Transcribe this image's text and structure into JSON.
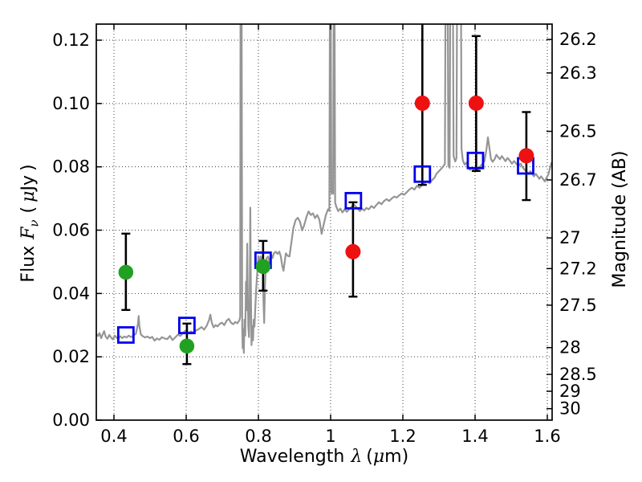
{
  "figure": {
    "background": "#ffffff",
    "frame_color": "#000000",
    "grid_color": "#3d3d3d",
    "errorbar_color": "#000000"
  },
  "labels": {
    "x": {
      "word": "Wavelength",
      "symbol": "λ",
      "open": "(",
      "mu": "μ",
      "unit": "m",
      "close": ")"
    },
    "y_left": {
      "word": "Flux",
      "symbol": "F",
      "subscript": "ν",
      "open": "(",
      "mu": "μ",
      "unit": "Jy",
      "close": ")"
    },
    "y_right": {
      "text": "Magnitude (AB)"
    }
  },
  "chart_data": {
    "type": "scatter",
    "title": "",
    "xlabel": "Wavelength λ (μm)",
    "ylabel": "Flux Fν ( μJy )",
    "ylabel_right": "Magnitude (AB)",
    "xlim": [
      0.351,
      1.614
    ],
    "ylim": [
      0.0,
      0.1251
    ],
    "grid": "dotted at major ticks, both axes",
    "x_ticks": [
      0.4,
      0.6,
      0.8,
      1.0,
      1.2,
      1.4,
      1.6
    ],
    "x_tick_labels": [
      "0.4",
      "0.6",
      "0.8",
      "1",
      "1.2",
      "1.4",
      "1.6"
    ],
    "y_ticks": [
      0.0,
      0.02,
      0.04,
      0.06,
      0.08,
      0.1,
      0.12
    ],
    "y_tick_labels": [
      "0.00",
      "0.02",
      "0.04",
      "0.06",
      "0.08",
      "0.10",
      "0.12"
    ],
    "right_axis": {
      "tick_mags": [
        26.2,
        26.3,
        26.5,
        26.7,
        27.0,
        27.2,
        27.5,
        28.0,
        28.5,
        29.0,
        30.0
      ],
      "tick_labels": [
        "26.2",
        "26.3",
        "26.5",
        "26.7",
        "27",
        "27.2",
        "27.5",
        "28",
        "28.5",
        "29",
        "30"
      ],
      "mag_zero_point": 23.9
    },
    "series": [
      {
        "name": "gray-spectrum",
        "type": "line",
        "color": "#8f8f8f",
        "linewidth": 2.2,
        "points": [
          [
            0.351,
            0.0272
          ],
          [
            0.356,
            0.0266
          ],
          [
            0.36,
            0.0275
          ],
          [
            0.3645,
            0.0259
          ],
          [
            0.369,
            0.0271
          ],
          [
            0.373,
            0.0281
          ],
          [
            0.377,
            0.0264
          ],
          [
            0.382,
            0.0257
          ],
          [
            0.387,
            0.0269
          ],
          [
            0.392,
            0.0261
          ],
          [
            0.397,
            0.0255
          ],
          [
            0.402,
            0.0267
          ],
          [
            0.407,
            0.0261
          ],
          [
            0.412,
            0.0257
          ],
          [
            0.4175,
            0.0265
          ],
          [
            0.423,
            0.0259
          ],
          [
            0.429,
            0.0264
          ],
          [
            0.435,
            0.0261
          ],
          [
            0.441,
            0.0267
          ],
          [
            0.4475,
            0.0262
          ],
          [
            0.454,
            0.0268
          ],
          [
            0.461,
            0.0273
          ],
          [
            0.4665,
            0.0304
          ],
          [
            0.4685,
            0.0329
          ],
          [
            0.4705,
            0.0297
          ],
          [
            0.4745,
            0.0271
          ],
          [
            0.479,
            0.0266
          ],
          [
            0.486,
            0.0261
          ],
          [
            0.493,
            0.0264
          ],
          [
            0.4995,
            0.0259
          ],
          [
            0.506,
            0.0263
          ],
          [
            0.5125,
            0.0251
          ],
          [
            0.519,
            0.0258
          ],
          [
            0.526,
            0.0254
          ],
          [
            0.533,
            0.0262
          ],
          [
            0.54,
            0.0258
          ],
          [
            0.5475,
            0.0256
          ],
          [
            0.555,
            0.0266
          ],
          [
            0.562,
            0.0253
          ],
          [
            0.5695,
            0.0261
          ],
          [
            0.577,
            0.027
          ],
          [
            0.584,
            0.0266
          ],
          [
            0.5915,
            0.0276
          ],
          [
            0.599,
            0.0283
          ],
          [
            0.6065,
            0.0276
          ],
          [
            0.6135,
            0.028
          ],
          [
            0.6205,
            0.0276
          ],
          [
            0.628,
            0.0284
          ],
          [
            0.6355,
            0.0288
          ],
          [
            0.6425,
            0.0294
          ],
          [
            0.6495,
            0.0286
          ],
          [
            0.657,
            0.0298
          ],
          [
            0.6635,
            0.0317
          ],
          [
            0.667,
            0.0333
          ],
          [
            0.671,
            0.0308
          ],
          [
            0.676,
            0.0293
          ],
          [
            0.6815,
            0.03
          ],
          [
            0.687,
            0.0296
          ],
          [
            0.693,
            0.0304
          ],
          [
            0.699,
            0.0308
          ],
          [
            0.7055,
            0.03
          ],
          [
            0.712,
            0.0314
          ],
          [
            0.718,
            0.032
          ],
          [
            0.724,
            0.0308
          ],
          [
            0.73,
            0.0303
          ],
          [
            0.736,
            0.031
          ],
          [
            0.742,
            0.0306
          ],
          [
            0.7475,
            0.0316
          ],
          [
            0.7495,
            0.0327
          ],
          [
            0.7505,
            0.129
          ],
          [
            0.7535,
            0.129
          ],
          [
            0.755,
            0.0294
          ],
          [
            0.7565,
            0.0227
          ],
          [
            0.758,
            0.0287
          ],
          [
            0.7595,
            0.0212
          ],
          [
            0.7615,
            0.0317
          ],
          [
            0.7635,
            0.0267
          ],
          [
            0.7655,
            0.0437
          ],
          [
            0.767,
            0.0347
          ],
          [
            0.769,
            0.0557
          ],
          [
            0.7705,
            0.0417
          ],
          [
            0.772,
            0.0297
          ],
          [
            0.774,
            0.0262
          ],
          [
            0.776,
            0.0382
          ],
          [
            0.7775,
            0.0671
          ],
          [
            0.779,
            0.0417
          ],
          [
            0.781,
            0.0237
          ],
          [
            0.783,
            0.0297
          ],
          [
            0.785,
            0.0252
          ],
          [
            0.787,
            0.0317
          ],
          [
            0.789,
            0.0295
          ],
          [
            0.791,
            0.0347
          ],
          [
            0.794,
            0.0417
          ],
          [
            0.797,
            0.0467
          ],
          [
            0.8,
            0.0517
          ],
          [
            0.803,
            0.0482
          ],
          [
            0.806,
            0.0517
          ],
          [
            0.809,
            0.0467
          ],
          [
            0.8115,
            0.0517
          ],
          [
            0.814,
            0.0377
          ],
          [
            0.816,
            0.0307
          ],
          [
            0.818,
            0.0417
          ],
          [
            0.82,
            0.0477
          ],
          [
            0.823,
            0.0512
          ],
          [
            0.827,
            0.0517
          ],
          [
            0.831,
            0.0497
          ],
          [
            0.835,
            0.0522
          ],
          [
            0.839,
            0.0512
          ],
          [
            0.843,
            0.0527
          ],
          [
            0.848,
            0.0532
          ],
          [
            0.853,
            0.0525
          ],
          [
            0.858,
            0.0532
          ],
          [
            0.862,
            0.0517
          ],
          [
            0.866,
            0.0487
          ],
          [
            0.8695,
            0.0472
          ],
          [
            0.8725,
            0.0497
          ],
          [
            0.876,
            0.0527
          ],
          [
            0.881,
            0.0519
          ],
          [
            0.886,
            0.0517
          ],
          [
            0.891,
            0.0557
          ],
          [
            0.897,
            0.0607
          ],
          [
            0.903,
            0.0632
          ],
          [
            0.909,
            0.0639
          ],
          [
            0.915,
            0.0627
          ],
          [
            0.921,
            0.0599
          ],
          [
            0.927,
            0.0616
          ],
          [
            0.933,
            0.0642
          ],
          [
            0.939,
            0.0659
          ],
          [
            0.945,
            0.0648
          ],
          [
            0.951,
            0.0653
          ],
          [
            0.957,
            0.0638
          ],
          [
            0.963,
            0.0648
          ],
          [
            0.969,
            0.0633
          ],
          [
            0.975,
            0.0588
          ],
          [
            0.981,
            0.0618
          ],
          [
            0.987,
            0.0648
          ],
          [
            0.993,
            0.0666
          ],
          [
            0.9965,
            0.0661
          ],
          [
            0.998,
            0.129
          ],
          [
            1.0005,
            0.129
          ],
          [
            1.002,
            0.0717
          ],
          [
            1.007,
            0.0715
          ],
          [
            1.0085,
            0.129
          ],
          [
            1.011,
            0.129
          ],
          [
            1.0125,
            0.0687
          ],
          [
            1.016,
            0.0673
          ],
          [
            1.021,
            0.066
          ],
          [
            1.027,
            0.0668
          ],
          [
            1.033,
            0.0656
          ],
          [
            1.039,
            0.0666
          ],
          [
            1.045,
            0.0658
          ],
          [
            1.051,
            0.0666
          ],
          [
            1.057,
            0.0672
          ],
          [
            1.063,
            0.0682
          ],
          [
            1.069,
            0.0676
          ],
          [
            1.075,
            0.0668
          ],
          [
            1.081,
            0.066
          ],
          [
            1.087,
            0.0668
          ],
          [
            1.093,
            0.0662
          ],
          [
            1.099,
            0.067
          ],
          [
            1.106,
            0.0666
          ],
          [
            1.113,
            0.0676
          ],
          [
            1.12,
            0.067
          ],
          [
            1.127,
            0.068
          ],
          [
            1.134,
            0.0688
          ],
          [
            1.141,
            0.0682
          ],
          [
            1.148,
            0.0692
          ],
          [
            1.155,
            0.0698
          ],
          [
            1.162,
            0.0692
          ],
          [
            1.169,
            0.07
          ],
          [
            1.176,
            0.0706
          ],
          [
            1.183,
            0.0703
          ],
          [
            1.19,
            0.071
          ],
          [
            1.197,
            0.0716
          ],
          [
            1.204,
            0.0712
          ],
          [
            1.211,
            0.072
          ],
          [
            1.218,
            0.0728
          ],
          [
            1.225,
            0.0734
          ],
          [
            1.232,
            0.0728
          ],
          [
            1.239,
            0.074
          ],
          [
            1.246,
            0.0734
          ],
          [
            1.253,
            0.0742
          ],
          [
            1.26,
            0.0748
          ],
          [
            1.267,
            0.0754
          ],
          [
            1.274,
            0.0748
          ],
          [
            1.281,
            0.0758
          ],
          [
            1.288,
            0.0766
          ],
          [
            1.2925,
            0.0777
          ],
          [
            1.298,
            0.0784
          ],
          [
            1.304,
            0.0791
          ],
          [
            1.31,
            0.0799
          ],
          [
            1.3165,
            0.0809
          ],
          [
            1.318,
            0.129
          ],
          [
            1.3245,
            0.129
          ],
          [
            1.326,
            0.0804
          ],
          [
            1.3295,
            0.0797
          ],
          [
            1.331,
            0.129
          ],
          [
            1.339,
            0.129
          ],
          [
            1.3405,
            0.0834
          ],
          [
            1.345,
            0.0817
          ],
          [
            1.3485,
            0.0827
          ],
          [
            1.35,
            0.129
          ],
          [
            1.361,
            0.129
          ],
          [
            1.3625,
            0.0857
          ],
          [
            1.366,
            0.0821
          ],
          [
            1.371,
            0.0807
          ],
          [
            1.376,
            0.0813
          ],
          [
            1.381,
            0.0798
          ],
          [
            1.386,
            0.079
          ],
          [
            1.391,
            0.0798
          ],
          [
            1.396,
            0.0792
          ],
          [
            1.401,
            0.0798
          ],
          [
            1.406,
            0.0786
          ],
          [
            1.411,
            0.0796
          ],
          [
            1.416,
            0.0804
          ],
          [
            1.421,
            0.081
          ],
          [
            1.426,
            0.0818
          ],
          [
            1.431,
            0.0852
          ],
          [
            1.4355,
            0.0893
          ],
          [
            1.44,
            0.0857
          ],
          [
            1.444,
            0.0824
          ],
          [
            1.449,
            0.0816
          ],
          [
            1.454,
            0.0824
          ],
          [
            1.459,
            0.0838
          ],
          [
            1.464,
            0.083
          ],
          [
            1.469,
            0.0824
          ],
          [
            1.474,
            0.0834
          ],
          [
            1.479,
            0.0826
          ],
          [
            1.484,
            0.0818
          ],
          [
            1.49,
            0.0828
          ],
          [
            1.496,
            0.082
          ],
          [
            1.502,
            0.081
          ],
          [
            1.508,
            0.0818
          ],
          [
            1.514,
            0.081
          ],
          [
            1.52,
            0.0802
          ],
          [
            1.526,
            0.081
          ],
          [
            1.532,
            0.0798
          ],
          [
            1.538,
            0.079
          ],
          [
            1.543,
            0.0784
          ],
          [
            1.548,
            0.0778
          ],
          [
            1.553,
            0.0786
          ],
          [
            1.558,
            0.0778
          ],
          [
            1.563,
            0.077
          ],
          [
            1.568,
            0.0778
          ],
          [
            1.573,
            0.077
          ],
          [
            1.578,
            0.0762
          ],
          [
            1.583,
            0.077
          ],
          [
            1.588,
            0.0762
          ],
          [
            1.593,
            0.0754
          ],
          [
            1.598,
            0.0766
          ],
          [
            1.603,
            0.0776
          ],
          [
            1.608,
            0.0798
          ],
          [
            1.612,
            0.0814
          ]
        ]
      },
      {
        "name": "blue-open-squares",
        "type": "scatter",
        "marker": "open-square",
        "color": "#0000ee",
        "points": [
          {
            "x": 0.433,
            "y": 0.0269
          },
          {
            "x": 0.602,
            "y": 0.0299
          },
          {
            "x": 0.813,
            "y": 0.0505
          },
          {
            "x": 1.063,
            "y": 0.0693
          },
          {
            "x": 1.254,
            "y": 0.0777
          },
          {
            "x": 1.401,
            "y": 0.082
          },
          {
            "x": 1.54,
            "y": 0.0803
          }
        ]
      },
      {
        "name": "green-filled-circles",
        "type": "scatter",
        "marker": "filled-circle",
        "color": "#21a122",
        "points": [
          {
            "x": 0.433,
            "y": 0.0467,
            "y_lo": 0.0348,
            "y_hi": 0.0589
          },
          {
            "x": 0.602,
            "y": 0.0234,
            "y_lo": 0.0177,
            "y_hi": 0.0305
          },
          {
            "x": 0.813,
            "y": 0.0485,
            "y_lo": 0.0409,
            "y_hi": 0.0566
          }
        ]
      },
      {
        "name": "red-filled-circles",
        "type": "scatter",
        "marker": "filled-circle",
        "color": "#ee1111",
        "points": [
          {
            "x": 1.062,
            "y": 0.0532,
            "y_lo": 0.039,
            "y_hi": 0.0688
          },
          {
            "x": 1.254,
            "y": 0.1001,
            "y_lo": 0.0743,
            "y_hi": 0.13
          },
          {
            "x": 1.403,
            "y": 0.1001,
            "y_lo": 0.0787,
            "y_hi": 0.1213
          },
          {
            "x": 1.542,
            "y": 0.0835,
            "y_lo": 0.0695,
            "y_hi": 0.0973
          }
        ]
      }
    ]
  }
}
